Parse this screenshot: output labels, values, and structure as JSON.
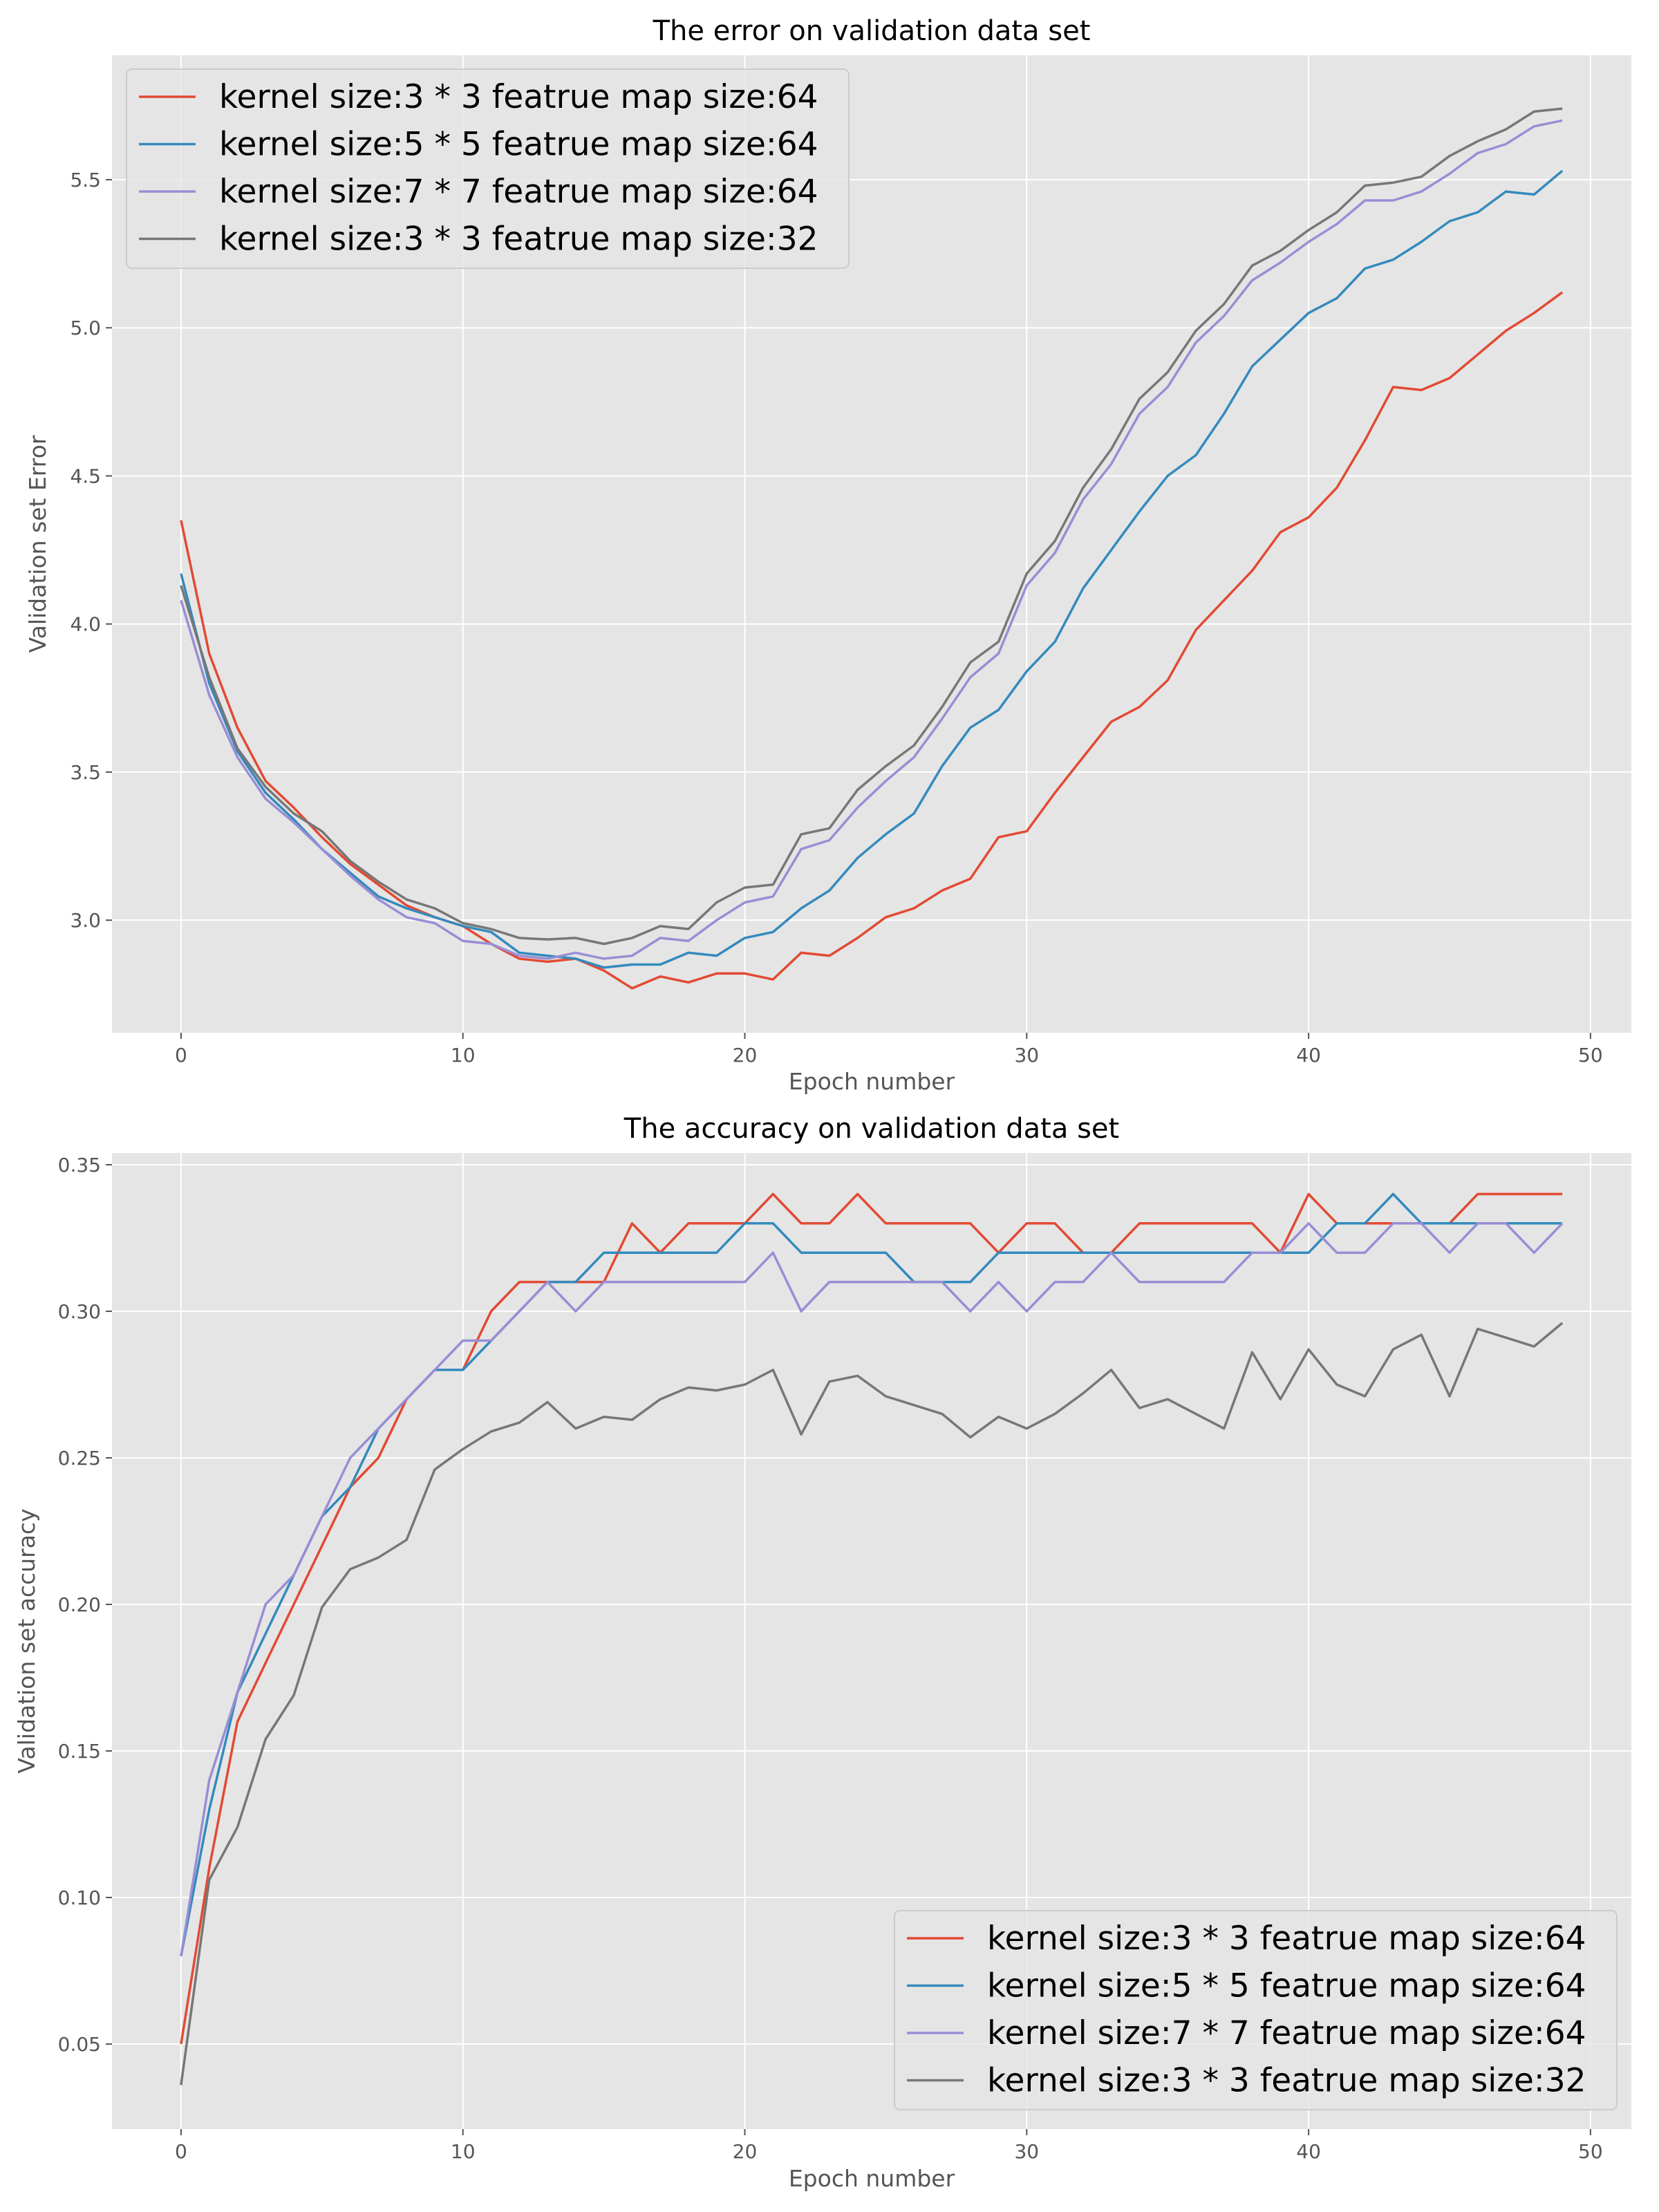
{
  "colors": {
    "background": "#e5e5e5",
    "grid": "#ffffff",
    "text": "#555555",
    "title": "#000000",
    "legend_bg": "#e5e5e5",
    "legend_border": "#cccccc"
  },
  "chart_data": [
    {
      "type": "line",
      "title": "The error on validation data set",
      "xlabel": "Epoch number",
      "ylabel": "Validation set Error",
      "xlim": [
        -2.45,
        51.45
      ],
      "ylim": [
        2.62,
        5.92
      ],
      "xticks": [
        0,
        10,
        20,
        30,
        40,
        50
      ],
      "xtick_labels": [
        "0",
        "10",
        "20",
        "30",
        "40",
        "50"
      ],
      "yticks": [
        3.0,
        3.5,
        4.0,
        4.5,
        5.0,
        5.5
      ],
      "ytick_labels": [
        "3.0",
        "3.5",
        "4.0",
        "4.5",
        "5.0",
        "5.5"
      ],
      "grid": true,
      "legend_position": "top-left",
      "x": [
        0,
        1,
        2,
        3,
        4,
        5,
        6,
        7,
        8,
        9,
        10,
        11,
        12,
        13,
        14,
        15,
        16,
        17,
        18,
        19,
        20,
        21,
        22,
        23,
        24,
        25,
        26,
        27,
        28,
        29,
        30,
        31,
        32,
        33,
        34,
        35,
        36,
        37,
        38,
        39,
        40,
        41,
        42,
        43,
        44,
        45,
        46,
        47,
        48,
        49
      ],
      "series": [
        {
          "name": "kernel size:3 * 3 featrue map size:64",
          "color": "#e24a33",
          "values": [
            4.35,
            3.9,
            3.65,
            3.47,
            3.38,
            3.28,
            3.19,
            3.12,
            3.05,
            3.01,
            2.98,
            2.92,
            2.87,
            2.86,
            2.87,
            2.83,
            2.77,
            2.81,
            2.79,
            2.82,
            2.82,
            2.8,
            2.89,
            2.88,
            2.94,
            3.01,
            3.04,
            3.1,
            3.14,
            3.28,
            3.3,
            3.43,
            3.55,
            3.67,
            3.72,
            3.81,
            3.98,
            4.08,
            4.18,
            4.31,
            4.36,
            4.46,
            4.62,
            4.8,
            4.79,
            4.83,
            4.91,
            4.99,
            5.05,
            5.12
          ]
        },
        {
          "name": "kernel size:5 * 5 featrue map size:64",
          "color": "#348abd",
          "values": [
            4.17,
            3.8,
            3.57,
            3.43,
            3.34,
            3.24,
            3.16,
            3.08,
            3.04,
            3.01,
            2.98,
            2.96,
            2.89,
            2.88,
            2.87,
            2.84,
            2.85,
            2.85,
            2.89,
            2.88,
            2.94,
            2.96,
            3.04,
            3.1,
            3.21,
            3.29,
            3.36,
            3.52,
            3.65,
            3.71,
            3.84,
            3.94,
            4.12,
            4.25,
            4.38,
            4.5,
            4.57,
            4.71,
            4.87,
            4.96,
            5.05,
            5.1,
            5.2,
            5.23,
            5.29,
            5.36,
            5.39,
            5.46,
            5.45,
            5.53
          ]
        },
        {
          "name": "kernel size:7 * 7 featrue map size:64",
          "color": "#988ed5",
          "values": [
            4.08,
            3.76,
            3.55,
            3.41,
            3.33,
            3.24,
            3.15,
            3.07,
            3.01,
            2.99,
            2.93,
            2.92,
            2.88,
            2.87,
            2.89,
            2.87,
            2.88,
            2.94,
            2.93,
            3.0,
            3.06,
            3.08,
            3.24,
            3.27,
            3.38,
            3.47,
            3.55,
            3.68,
            3.82,
            3.9,
            4.13,
            4.24,
            4.42,
            4.54,
            4.71,
            4.8,
            4.95,
            5.04,
            5.16,
            5.22,
            5.29,
            5.35,
            5.43,
            5.43,
            5.46,
            5.52,
            5.59,
            5.62,
            5.68,
            5.7
          ]
        },
        {
          "name": "kernel size:3 * 3 featrue map size:32",
          "color": "#777777",
          "values": [
            4.13,
            3.82,
            3.58,
            3.45,
            3.36,
            3.3,
            3.2,
            3.13,
            3.07,
            3.04,
            2.99,
            2.97,
            2.94,
            2.935,
            2.94,
            2.92,
            2.94,
            2.98,
            2.97,
            3.06,
            3.11,
            3.12,
            3.29,
            3.31,
            3.44,
            3.52,
            3.59,
            3.72,
            3.87,
            3.94,
            4.17,
            4.28,
            4.46,
            4.59,
            4.76,
            4.85,
            4.99,
            5.08,
            5.21,
            5.26,
            5.33,
            5.39,
            5.48,
            5.49,
            5.51,
            5.58,
            5.63,
            5.67,
            5.73,
            5.74
          ]
        }
      ]
    },
    {
      "type": "line",
      "title": "The accuracy on validation data set",
      "xlabel": "Epoch number",
      "ylabel": "Validation set accuracy",
      "xlim": [
        -2.45,
        51.45
      ],
      "ylim": [
        0.021,
        0.354
      ],
      "xticks": [
        0,
        10,
        20,
        30,
        40,
        50
      ],
      "xtick_labels": [
        "0",
        "10",
        "20",
        "30",
        "40",
        "50"
      ],
      "yticks": [
        0.05,
        0.1,
        0.15,
        0.2,
        0.25,
        0.3,
        0.35
      ],
      "ytick_labels": [
        "0.05",
        "0.10",
        "0.15",
        "0.20",
        "0.25",
        "0.30",
        "0.35"
      ],
      "grid": true,
      "legend_position": "bottom-right",
      "x": [
        0,
        1,
        2,
        3,
        4,
        5,
        6,
        7,
        8,
        9,
        10,
        11,
        12,
        13,
        14,
        15,
        16,
        17,
        18,
        19,
        20,
        21,
        22,
        23,
        24,
        25,
        26,
        27,
        28,
        29,
        30,
        31,
        32,
        33,
        34,
        35,
        36,
        37,
        38,
        39,
        40,
        41,
        42,
        43,
        44,
        45,
        46,
        47,
        48,
        49
      ],
      "series": [
        {
          "name": "kernel size:3 * 3 featrue map size:64",
          "color": "#e24a33",
          "values": [
            0.05,
            0.11,
            0.16,
            0.18,
            0.2,
            0.22,
            0.24,
            0.25,
            0.27,
            0.28,
            0.28,
            0.3,
            0.31,
            0.31,
            0.31,
            0.31,
            0.33,
            0.32,
            0.33,
            0.33,
            0.33,
            0.34,
            0.33,
            0.33,
            0.34,
            0.33,
            0.33,
            0.33,
            0.33,
            0.32,
            0.33,
            0.33,
            0.32,
            0.32,
            0.33,
            0.33,
            0.33,
            0.33,
            0.33,
            0.32,
            0.34,
            0.33,
            0.33,
            0.33,
            0.33,
            0.33,
            0.34,
            0.34,
            0.34,
            0.34
          ]
        },
        {
          "name": "kernel size:5 * 5 featrue map size:64",
          "color": "#348abd",
          "values": [
            0.08,
            0.13,
            0.17,
            0.19,
            0.21,
            0.23,
            0.24,
            0.26,
            0.27,
            0.28,
            0.28,
            0.29,
            0.3,
            0.31,
            0.31,
            0.32,
            0.32,
            0.32,
            0.32,
            0.32,
            0.33,
            0.33,
            0.32,
            0.32,
            0.32,
            0.32,
            0.31,
            0.31,
            0.31,
            0.32,
            0.32,
            0.32,
            0.32,
            0.32,
            0.32,
            0.32,
            0.32,
            0.32,
            0.32,
            0.32,
            0.32,
            0.33,
            0.33,
            0.34,
            0.33,
            0.33,
            0.33,
            0.33,
            0.33,
            0.33
          ]
        },
        {
          "name": "kernel size:7 * 7 featrue map size:64",
          "color": "#988ed5",
          "values": [
            0.08,
            0.14,
            0.17,
            0.2,
            0.21,
            0.23,
            0.25,
            0.26,
            0.27,
            0.28,
            0.29,
            0.29,
            0.3,
            0.31,
            0.3,
            0.31,
            0.31,
            0.31,
            0.31,
            0.31,
            0.31,
            0.32,
            0.3,
            0.31,
            0.31,
            0.31,
            0.31,
            0.31,
            0.3,
            0.31,
            0.3,
            0.31,
            0.31,
            0.32,
            0.31,
            0.31,
            0.31,
            0.31,
            0.32,
            0.32,
            0.33,
            0.32,
            0.32,
            0.33,
            0.33,
            0.32,
            0.33,
            0.33,
            0.32,
            0.33
          ]
        },
        {
          "name": "kernel size:3 * 3 featrue map size:32",
          "color": "#777777",
          "values": [
            0.036,
            0.106,
            0.124,
            0.154,
            0.169,
            0.199,
            0.212,
            0.216,
            0.222,
            0.246,
            0.253,
            0.259,
            0.262,
            0.269,
            0.26,
            0.264,
            0.263,
            0.27,
            0.274,
            0.273,
            0.275,
            0.28,
            0.258,
            0.276,
            0.278,
            0.271,
            0.268,
            0.265,
            0.257,
            0.264,
            0.26,
            0.265,
            0.272,
            0.28,
            0.267,
            0.27,
            0.265,
            0.26,
            0.286,
            0.27,
            0.287,
            0.275,
            0.271,
            0.287,
            0.292,
            0.271,
            0.294,
            0.291,
            0.288,
            0.296
          ]
        }
      ]
    }
  ]
}
